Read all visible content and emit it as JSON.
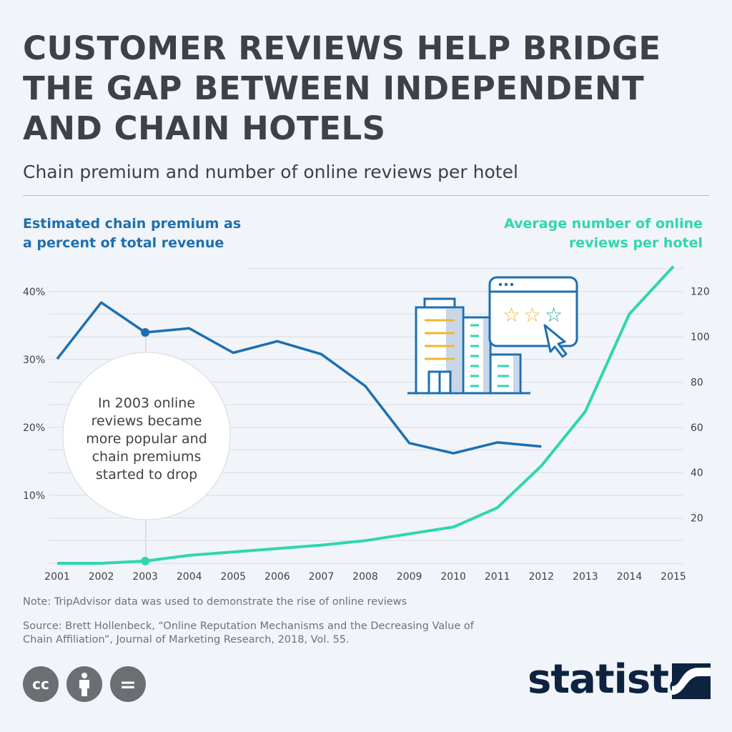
{
  "header": {
    "title": "CUSTOMER REVIEWS HELP BRIDGE THE GAP BETWEEN INDEPENDENT AND CHAIN HOTELS",
    "subtitle": "Chain premium and number of online reviews per hotel"
  },
  "chart_data": {
    "type": "line",
    "x": [
      2001,
      2002,
      2003,
      2004,
      2005,
      2006,
      2007,
      2008,
      2009,
      2010,
      2011,
      2012,
      2013,
      2014,
      2015
    ],
    "x_tick_labels": [
      "2001",
      "2002",
      "2003",
      "2004",
      "2005",
      "2006",
      "2007",
      "2008",
      "2009",
      "2010",
      "2011",
      "2012",
      "2013",
      "2014",
      "2015"
    ],
    "left_axis": {
      "label_line1": "Estimated chain premium as",
      "label_line2": "a percent of total revenue",
      "ticks": [
        "10%",
        "20%",
        "30%",
        "40%"
      ],
      "tick_values": [
        10,
        20,
        30,
        40
      ],
      "range": [
        0,
        43
      ]
    },
    "right_axis": {
      "label_line1": "Average number of online",
      "label_line2": "reviews per hotel",
      "ticks": [
        "20",
        "40",
        "60",
        "80",
        "100",
        "120"
      ],
      "tick_values": [
        20,
        40,
        60,
        80,
        100,
        120
      ],
      "range": [
        0,
        132
      ]
    },
    "grid": true,
    "series": [
      {
        "name": "Estimated chain premium as a percent of total revenue",
        "axis": "left",
        "color": "#1d6fb1",
        "values": [
          30.1,
          38.4,
          34.0,
          34.6,
          31.0,
          32.7,
          30.8,
          26.1,
          17.7,
          16.2,
          17.8,
          17.2,
          null,
          null,
          null
        ]
      },
      {
        "name": "Average number of online reviews per hotel",
        "axis": "right",
        "color": "#2fd6b0",
        "values": [
          0,
          0,
          1,
          3.5,
          5,
          6.5,
          8,
          10,
          13,
          16,
          24.5,
          43,
          67,
          110,
          131
        ]
      }
    ],
    "annotation": {
      "year": 2003,
      "lines": [
        "In 2003 online",
        "reviews became",
        "more popular and",
        "chain premiums",
        "started to drop"
      ]
    }
  },
  "footer": {
    "note": "Note: TripAdvisor data was used to demonstrate the rise of online reviews",
    "source": "Source: Brett Hollenbeck, “Online Reputation Mechanisms and the Decreasing Value of Chain Affiliation”, Journal of Marketing Research, 2018, Vol. 55.",
    "license_icons": [
      "cc-icon",
      "by-icon",
      "nd-icon"
    ],
    "cc_text": "cc",
    "nd_text": "=",
    "logo": "statista"
  }
}
